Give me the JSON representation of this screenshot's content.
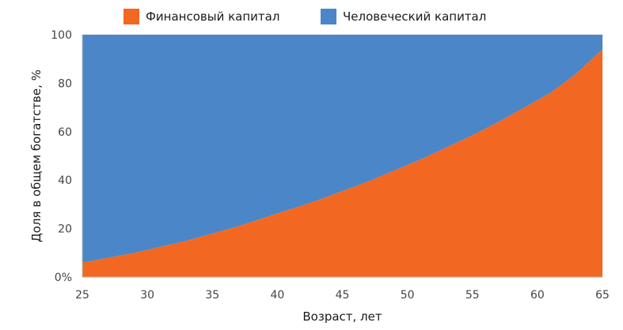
{
  "chart_data": {
    "type": "area",
    "stacked": true,
    "title": "",
    "xlabel": "Возраст, лет",
    "ylabel": "Доля в общем богатстве, %",
    "xlim": [
      25,
      65
    ],
    "ylim": [
      0,
      100
    ],
    "x_ticks": [
      "25",
      "30",
      "35",
      "40",
      "45",
      "50",
      "55",
      "60",
      "65"
    ],
    "y_ticks": [
      "0%",
      "20",
      "40",
      "60",
      "80",
      "100"
    ],
    "grid": true,
    "legend_position": "top",
    "x": [
      25,
      27,
      29,
      31,
      33,
      35,
      37,
      39,
      41,
      43,
      45,
      47,
      49,
      51,
      53,
      55,
      57,
      59,
      61,
      63,
      65
    ],
    "series": [
      {
        "name": "Финансовый капитал",
        "color": "#f26822",
        "values": [
          6,
          8,
          10,
          12.5,
          15,
          18,
          21,
          24.5,
          28,
          31.5,
          35.5,
          39.5,
          44,
          48.5,
          53.5,
          58.5,
          64,
          70,
          76,
          84,
          94
        ]
      },
      {
        "name": "Человеческий капитал",
        "color": "#4a86c8",
        "values": [
          94,
          92,
          90,
          87.5,
          85,
          82,
          79,
          75.5,
          72,
          68.5,
          64.5,
          60.5,
          56,
          51.5,
          46.5,
          41.5,
          36,
          30,
          24,
          16,
          6
        ]
      }
    ]
  }
}
